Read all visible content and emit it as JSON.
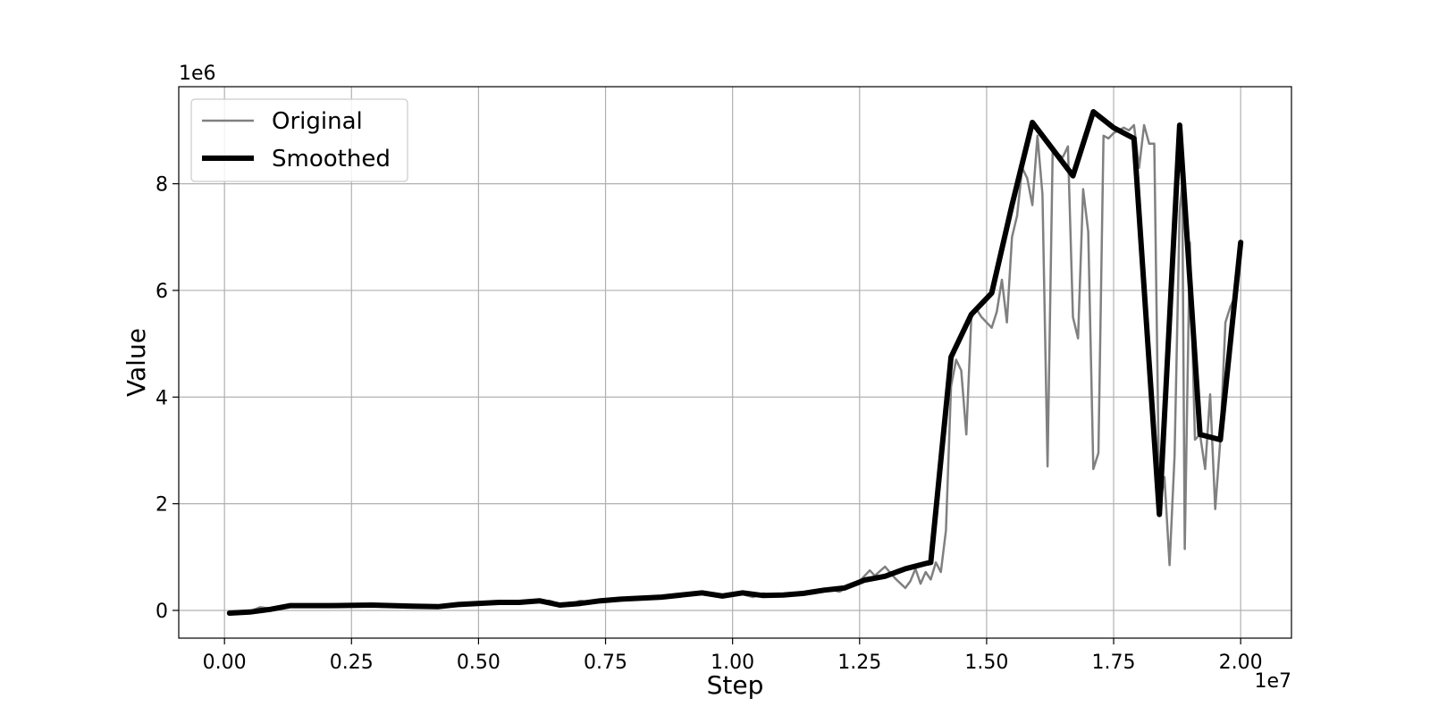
{
  "chart_data": {
    "type": "line",
    "xlabel": "Step",
    "ylabel": "Value",
    "x_exponent_label": "1e7",
    "y_exponent_label": "1e6",
    "x_scale": 10000000,
    "y_scale": 1000000,
    "xlim": [
      -0.09,
      2.1
    ],
    "ylim": [
      -0.52,
      9.82
    ],
    "x_ticks": [
      0.0,
      0.25,
      0.5,
      0.75,
      1.0,
      1.25,
      1.5,
      1.75,
      2.0
    ],
    "x_tick_labels": [
      "0.00",
      "0.25",
      "0.50",
      "0.75",
      "1.00",
      "1.25",
      "1.50",
      "1.75",
      "2.00"
    ],
    "y_ticks": [
      0,
      2,
      4,
      6,
      8
    ],
    "y_tick_labels": [
      "0",
      "2",
      "4",
      "6",
      "8"
    ],
    "grid": true,
    "legend_position": "top-left",
    "series": [
      {
        "name": "Original",
        "color": "#808080",
        "line_width": 2.5,
        "x": [
          0.01,
          0.05,
          0.07,
          0.1,
          0.13,
          0.17,
          0.2,
          0.25,
          0.3,
          0.35,
          0.4,
          0.42,
          0.45,
          0.5,
          0.55,
          0.6,
          0.64,
          0.67,
          0.7,
          0.73,
          0.78,
          0.85,
          0.9,
          0.94,
          0.97,
          1.0,
          1.02,
          1.04,
          1.06,
          1.08,
          1.1,
          1.13,
          1.16,
          1.19,
          1.21,
          1.23,
          1.25,
          1.27,
          1.28,
          1.3,
          1.32,
          1.34,
          1.35,
          1.36,
          1.37,
          1.38,
          1.39,
          1.4,
          1.41,
          1.42,
          1.43,
          1.44,
          1.45,
          1.46,
          1.47,
          1.48,
          1.49,
          1.5,
          1.51,
          1.52,
          1.53,
          1.54,
          1.55,
          1.56,
          1.57,
          1.58,
          1.59,
          1.6,
          1.61,
          1.62,
          1.63,
          1.64,
          1.65,
          1.66,
          1.67,
          1.68,
          1.69,
          1.7,
          1.71,
          1.72,
          1.73,
          1.74,
          1.75,
          1.76,
          1.77,
          1.78,
          1.79,
          1.8,
          1.81,
          1.82,
          1.83,
          1.84,
          1.85,
          1.86,
          1.87,
          1.88,
          1.885,
          1.89,
          1.9,
          1.91,
          1.92,
          1.93,
          1.94,
          1.95,
          1.96,
          1.97,
          1.98,
          1.99,
          2.0
        ],
        "y": [
          -0.05,
          -0.02,
          0.06,
          0.02,
          0.08,
          0.07,
          0.07,
          0.08,
          0.07,
          0.06,
          0.06,
          0.05,
          0.1,
          0.12,
          0.15,
          0.18,
          0.18,
          0.08,
          0.18,
          0.15,
          0.2,
          0.24,
          0.3,
          0.3,
          0.28,
          0.3,
          0.3,
          0.25,
          0.32,
          0.28,
          0.3,
          0.3,
          0.32,
          0.4,
          0.35,
          0.45,
          0.55,
          0.75,
          0.65,
          0.82,
          0.6,
          0.42,
          0.55,
          0.78,
          0.5,
          0.72,
          0.58,
          0.9,
          0.72,
          1.5,
          4.2,
          4.7,
          4.5,
          3.3,
          5.5,
          5.65,
          5.5,
          5.4,
          5.3,
          5.6,
          6.2,
          5.4,
          7.0,
          7.4,
          8.3,
          8.1,
          7.6,
          8.9,
          7.8,
          2.7,
          8.6,
          8.55,
          8.5,
          8.7,
          5.5,
          5.1,
          7.9,
          7.1,
          2.65,
          2.95,
          8.9,
          8.85,
          8.95,
          9.0,
          9.05,
          9.0,
          9.1,
          8.3,
          9.1,
          8.75,
          8.75,
          1.9,
          2.5,
          0.85,
          2.9,
          7.5,
          8.0,
          1.15,
          6.9,
          3.2,
          3.3,
          2.65,
          4.05,
          1.9,
          3.2,
          5.4,
          5.7,
          5.9,
          6.85
        ]
      },
      {
        "name": "Smoothed",
        "color": "#000000",
        "line_width": 6,
        "x": [
          0.01,
          0.05,
          0.09,
          0.13,
          0.21,
          0.29,
          0.37,
          0.42,
          0.46,
          0.54,
          0.58,
          0.62,
          0.66,
          0.7,
          0.74,
          0.78,
          0.86,
          0.94,
          0.98,
          1.02,
          1.06,
          1.1,
          1.14,
          1.18,
          1.22,
          1.26,
          1.3,
          1.34,
          1.38,
          1.39,
          1.43,
          1.47,
          1.51,
          1.55,
          1.59,
          1.67,
          1.71,
          1.75,
          1.79,
          1.84,
          1.88,
          1.92,
          1.96,
          2.0
        ],
        "y": [
          -0.05,
          -0.03,
          0.02,
          0.09,
          0.09,
          0.1,
          0.08,
          0.07,
          0.11,
          0.15,
          0.15,
          0.18,
          0.1,
          0.13,
          0.18,
          0.21,
          0.25,
          0.33,
          0.27,
          0.33,
          0.28,
          0.29,
          0.32,
          0.38,
          0.42,
          0.57,
          0.64,
          0.78,
          0.88,
          0.9,
          4.75,
          5.55,
          5.95,
          7.6,
          9.15,
          8.15,
          9.35,
          9.05,
          8.85,
          1.8,
          9.1,
          3.3,
          3.2,
          6.9
        ]
      }
    ]
  }
}
